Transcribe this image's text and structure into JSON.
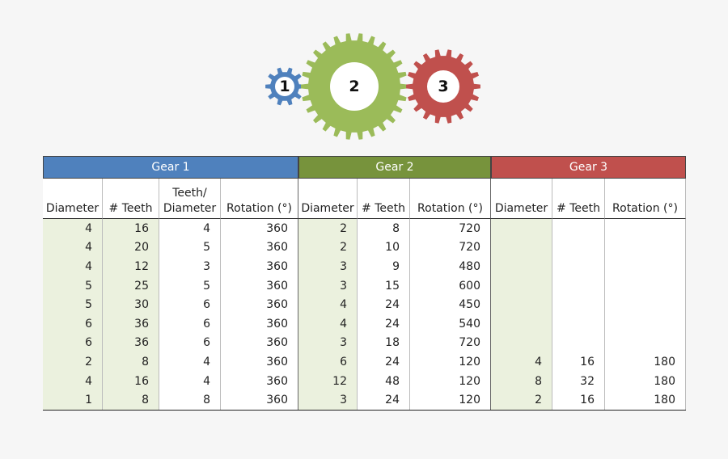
{
  "gears": [
    {
      "label": "1"
    },
    {
      "label": "2"
    },
    {
      "label": "3"
    }
  ],
  "table": {
    "groups": [
      "Gear 1",
      "Gear 2",
      "Gear 3"
    ],
    "columns": [
      "Diameter",
      "# Teeth",
      "Teeth/\nDiameter",
      "Rotation (°)",
      "Diameter",
      "# Teeth",
      "Rotation (°)",
      "Diameter",
      "# Teeth",
      "Rotation (°)"
    ],
    "rows": [
      [
        4,
        16,
        4,
        360,
        2,
        8,
        720,
        null,
        null,
        null
      ],
      [
        4,
        20,
        5,
        360,
        2,
        10,
        720,
        null,
        null,
        null
      ],
      [
        4,
        12,
        3,
        360,
        3,
        9,
        480,
        null,
        null,
        null
      ],
      [
        5,
        25,
        5,
        360,
        3,
        15,
        600,
        null,
        null,
        null
      ],
      [
        5,
        30,
        6,
        360,
        4,
        24,
        450,
        null,
        null,
        null
      ],
      [
        6,
        36,
        6,
        360,
        4,
        24,
        540,
        null,
        null,
        null
      ],
      [
        6,
        36,
        6,
        360,
        3,
        18,
        720,
        null,
        null,
        null
      ],
      [
        2,
        8,
        4,
        360,
        6,
        24,
        120,
        4,
        16,
        180
      ],
      [
        4,
        16,
        4,
        360,
        12,
        48,
        120,
        8,
        32,
        180
      ],
      [
        1,
        8,
        8,
        360,
        3,
        24,
        120,
        2,
        16,
        180
      ]
    ]
  }
}
